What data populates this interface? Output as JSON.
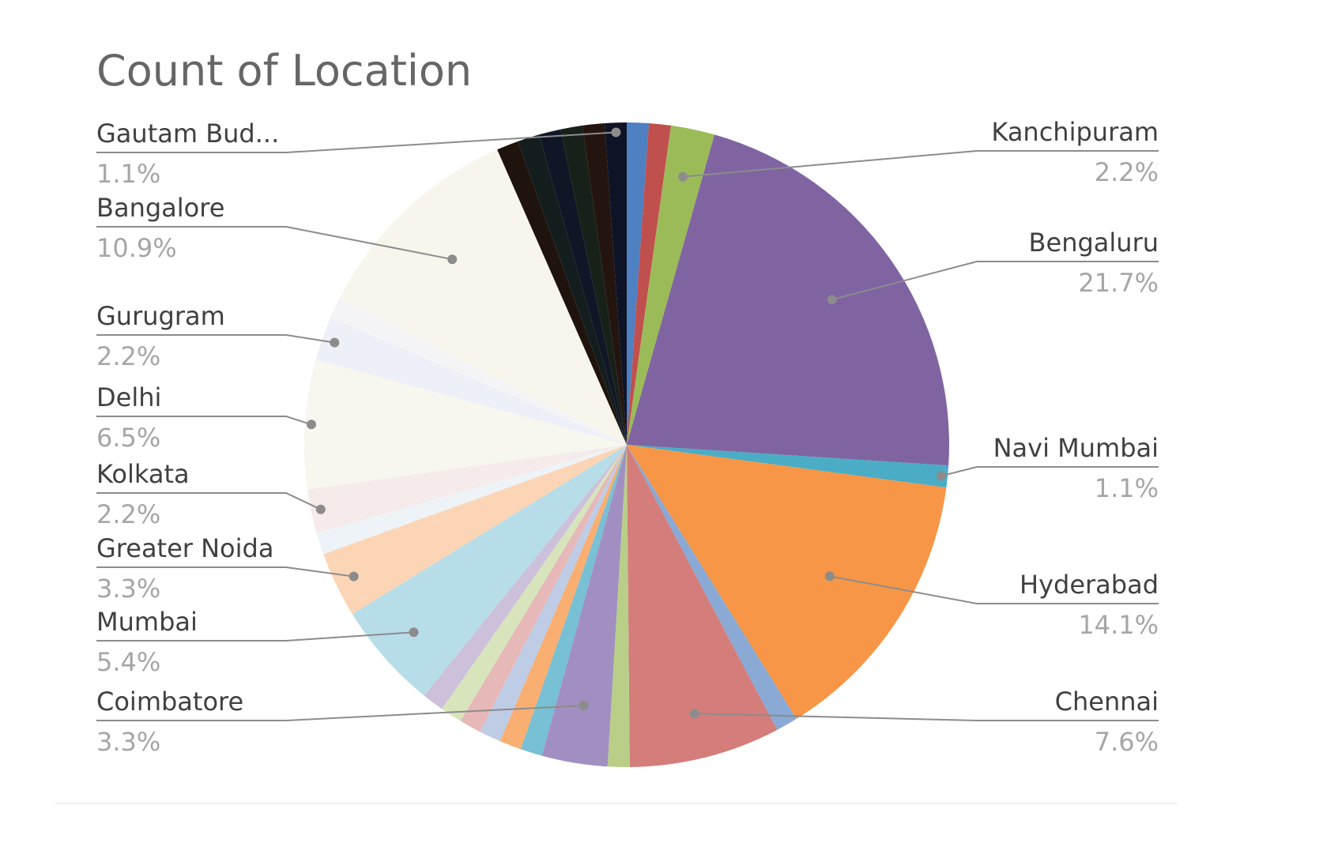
{
  "chart_data": {
    "type": "pie",
    "title": "Count of Location",
    "start_angle_deg": 0,
    "direction": "clockwise",
    "slices": [
      {
        "name": "",
        "value": 1.1,
        "color": "#4e80c2"
      },
      {
        "name": "",
        "value": 1.1,
        "color": "#c0504d"
      },
      {
        "name": "Kanchipuram",
        "value": 2.2,
        "value_label": "2.2%",
        "color": "#9bbb59",
        "show_label": true
      },
      {
        "name": "Bengaluru",
        "value": 21.7,
        "value_label": "21.7%",
        "color": "#8064a2",
        "show_label": true
      },
      {
        "name": "Navi Mumbai",
        "value": 1.1,
        "value_label": "1.1%",
        "color": "#4bacc6",
        "show_label": true
      },
      {
        "name": "Hyderabad",
        "value": 14.1,
        "value_label": "14.1%",
        "color": "#f79646",
        "show_label": true
      },
      {
        "name": "",
        "value": 1.1,
        "color": "#8aa9d4"
      },
      {
        "name": "Chennai",
        "value": 7.6,
        "value_label": "7.6%",
        "color": "#d47d7b",
        "show_label": true
      },
      {
        "name": "",
        "value": 1.1,
        "color": "#b9cf88"
      },
      {
        "name": "Coimbatore",
        "value": 3.3,
        "value_label": "3.3%",
        "color": "#a28fc1",
        "show_label": true
      },
      {
        "name": "",
        "value": 1.1,
        "color": "#78c0d3"
      },
      {
        "name": "",
        "value": 1.1,
        "color": "#f9af72"
      },
      {
        "name": "",
        "value": 1.1,
        "color": "#bfcce6"
      },
      {
        "name": "",
        "value": 1.1,
        "color": "#e6b8b7"
      },
      {
        "name": "",
        "value": 1.1,
        "color": "#d8e4bc"
      },
      {
        "name": "",
        "value": 1.1,
        "color": "#ccc0da"
      },
      {
        "name": "Mumbai",
        "value": 5.4,
        "value_label": "5.4%",
        "color": "#b7dde8",
        "show_label": true
      },
      {
        "name": "Greater Noida",
        "value": 3.3,
        "value_label": "3.3%",
        "color": "#fbd5b5",
        "show_label": true
      },
      {
        "name": "",
        "value": 1.1,
        "color": "#eef3f8"
      },
      {
        "name": "Kolkata",
        "value": 2.2,
        "value_label": "2.2%",
        "color": "#f5ebea",
        "show_label": true
      },
      {
        "name": "Delhi",
        "value": 6.5,
        "value_label": "6.5%",
        "color": "#f7f6ef",
        "show_label": true
      },
      {
        "name": "Gurugram",
        "value": 2.2,
        "value_label": "2.2%",
        "color": "#eef0f7",
        "show_label": true
      },
      {
        "name": "",
        "value": 1.1,
        "color": "#f4f4f6"
      },
      {
        "name": "Bangalore",
        "value": 10.9,
        "value_label": "10.9%",
        "color": "#f8f5ec",
        "show_label": true
      },
      {
        "name": "",
        "value": 1.1,
        "color": "#1f140d"
      },
      {
        "name": "",
        "value": 1.1,
        "color": "#141d1d"
      },
      {
        "name": "",
        "value": 1.1,
        "color": "#0f1726"
      },
      {
        "name": "",
        "value": 1.1,
        "color": "#18201a"
      },
      {
        "name": "",
        "value": 1.1,
        "color": "#24140f"
      },
      {
        "name": "Gautam Bud...",
        "value": 1.1,
        "value_label": "1.1%",
        "color": "#0e1425",
        "show_label": true
      }
    ]
  }
}
